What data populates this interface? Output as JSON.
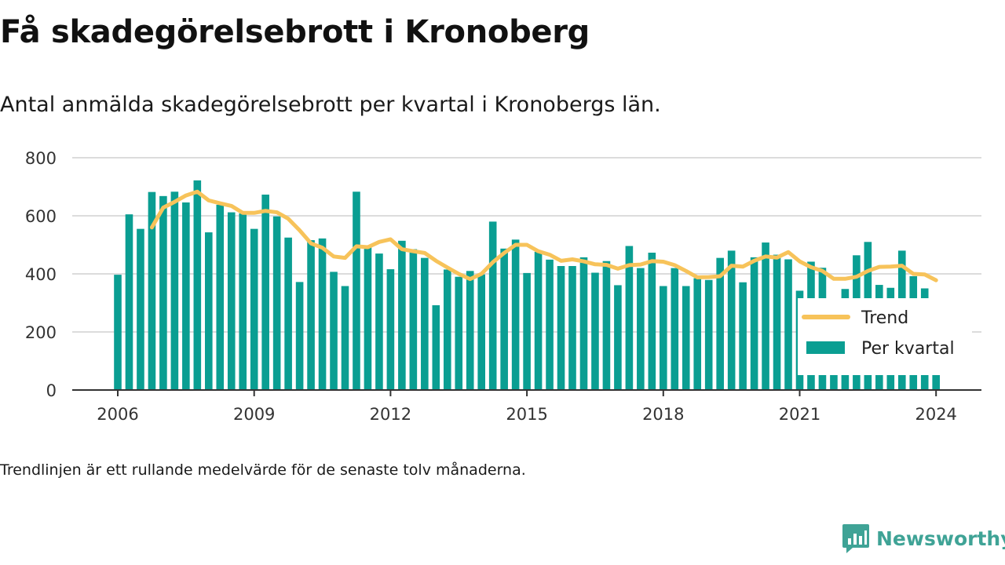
{
  "title": "Få skadegörelsebrott i Kronoberg",
  "subtitle": "Antal anmälda skadegörelsebrott per kvartal i Kronobergs län.",
  "footnote": "Trendlinjen är ett rullande medelvärde för de senaste tolv månaderna.",
  "brand": {
    "name": "Newsworthy"
  },
  "colors": {
    "bars": "#0a9e92",
    "trend": "#f7c35a",
    "grid": "#dcdcdc",
    "axis": "#333333",
    "brand": "#3fa396"
  },
  "chart_data": {
    "type": "bar",
    "title": "",
    "xlabel": "",
    "ylabel": "",
    "ylim": [
      0,
      800
    ],
    "yticks": [
      "0",
      "200",
      "400",
      "600",
      "800"
    ],
    "xticks": [
      "2006",
      "2009",
      "2012",
      "2015",
      "2018",
      "2021",
      "2024"
    ],
    "grid": true,
    "legend": {
      "position": "top-right",
      "trend_label": "Trend",
      "bars_label": "Per kvartal"
    },
    "categories": [
      "2006 Q1",
      "2006 Q2",
      "2006 Q3",
      "2006 Q4",
      "2007 Q1",
      "2007 Q2",
      "2007 Q3",
      "2007 Q4",
      "2008 Q1",
      "2008 Q2",
      "2008 Q3",
      "2008 Q4",
      "2009 Q1",
      "2009 Q2",
      "2009 Q3",
      "2009 Q4",
      "2010 Q1",
      "2010 Q2",
      "2010 Q3",
      "2010 Q4",
      "2011 Q1",
      "2011 Q2",
      "2011 Q3",
      "2011 Q4",
      "2012 Q1",
      "2012 Q2",
      "2012 Q3",
      "2012 Q4",
      "2013 Q1",
      "2013 Q2",
      "2013 Q3",
      "2013 Q4",
      "2014 Q1",
      "2014 Q2",
      "2014 Q3",
      "2014 Q4",
      "2015 Q1",
      "2015 Q2",
      "2015 Q3",
      "2015 Q4",
      "2016 Q1",
      "2016 Q2",
      "2016 Q3",
      "2016 Q4",
      "2017 Q1",
      "2017 Q2",
      "2017 Q3",
      "2017 Q4",
      "2018 Q1",
      "2018 Q2",
      "2018 Q3",
      "2018 Q4",
      "2019 Q1",
      "2019 Q2",
      "2019 Q3",
      "2019 Q4",
      "2020 Q1",
      "2020 Q2",
      "2020 Q3",
      "2020 Q4",
      "2021 Q1",
      "2021 Q2",
      "2021 Q3",
      "2021 Q4",
      "2022 Q1",
      "2022 Q2",
      "2022 Q3",
      "2022 Q4",
      "2023 Q1",
      "2023 Q2",
      "2023 Q3",
      "2023 Q4",
      "2024 Q1"
    ],
    "series": [
      {
        "name": "Per kvartal",
        "type": "bar",
        "values": [
          397,
          605,
          555,
          682,
          668,
          683,
          646,
          722,
          543,
          638,
          612,
          608,
          555,
          673,
          598,
          525,
          372,
          516,
          522,
          407,
          358,
          683,
          492,
          470,
          416,
          514,
          485,
          455,
          292,
          415,
          390,
          410,
          398,
          580,
          487,
          518,
          403,
          476,
          449,
          427,
          427,
          457,
          404,
          444,
          361,
          496,
          420,
          473,
          358,
          420,
          358,
          385,
          379,
          455,
          480,
          371,
          457,
          508,
          466,
          450,
          342,
          442,
          421,
          308,
          348,
          464,
          510,
          362,
          352,
          480,
          392,
          350,
          292
        ]
      },
      {
        "name": "Trend",
        "type": "line",
        "values": [
          null,
          null,
          null,
          560,
          628,
          648,
          670,
          683,
          653,
          643,
          634,
          610,
          610,
          617,
          612,
          590,
          550,
          505,
          490,
          460,
          455,
          495,
          492,
          510,
          519,
          485,
          478,
          472,
          445,
          422,
          400,
          382,
          400,
          440,
          472,
          500,
          500,
          478,
          466,
          445,
          450,
          443,
          433,
          431,
          418,
          430,
          432,
          444,
          442,
          430,
          410,
          388,
          389,
          392,
          428,
          425,
          445,
          460,
          456,
          475,
          443,
          423,
          410,
          383,
          383,
          390,
          410,
          424,
          425,
          428,
          400,
          398,
          378
        ]
      }
    ]
  }
}
